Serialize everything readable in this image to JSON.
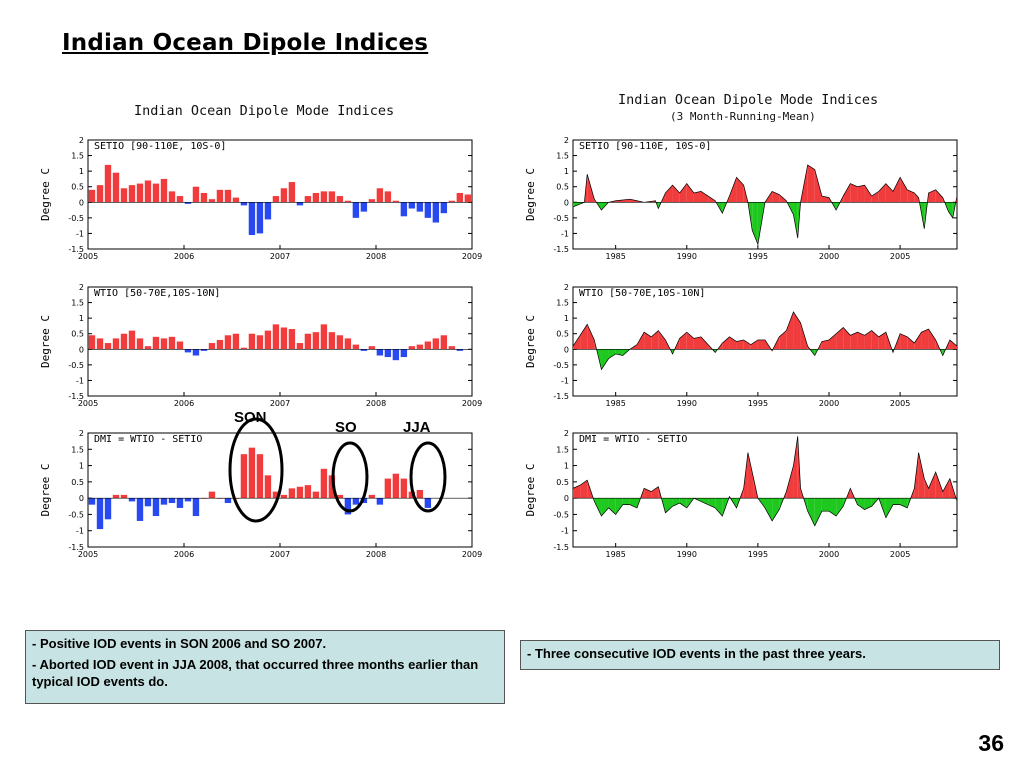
{
  "slide": {
    "title": "Indian Ocean Dipole Indices",
    "page_number": "36"
  },
  "colors": {
    "positive_bar": "#f03c3c",
    "negative_bar": "#2848f0",
    "positive_fill": "#f03c3c",
    "negative_fill": "#1ec81e",
    "axis": "#000000",
    "event_circle": "#000000",
    "note_background": "#c7e3e3"
  },
  "left_chart": {
    "heading": "Indian Ocean Dipole Mode Indices"
  },
  "right_chart": {
    "heading": "Indian Ocean Dipole Mode Indices",
    "subheading": "(3 Month-Running-Mean)"
  },
  "event_labels": {
    "son": "SON",
    "so": "SO",
    "jja": "JJA"
  },
  "notes": {
    "left": [
      {
        "dash": "- ",
        "text": "Positive IOD events in SON 2006 and SO 2007."
      },
      {
        "dash": "- ",
        "text": "Aborted IOD event in JJA 2008, that occurred three months earlier than typical IOD events do."
      }
    ],
    "right": [
      {
        "dash": "- ",
        "text": "Three consecutive IOD events in the past three years."
      }
    ]
  },
  "chart_data": [
    {
      "type": "bar",
      "panel_label": "SETIO [90-110E, 10S-0]",
      "ylabel": "Degree C",
      "xlim": [
        2005,
        2009
      ],
      "ylim": [
        -1.5,
        2
      ],
      "xticks": [
        2005,
        2006,
        2007,
        2008,
        2009
      ],
      "yticks": [
        2,
        1.5,
        1,
        0.5,
        0,
        -0.5,
        -1,
        -1.5
      ],
      "x_start": 2005.0,
      "x_step": 0.0833,
      "values": [
        0.4,
        0.55,
        1.2,
        0.95,
        0.45,
        0.55,
        0.6,
        0.7,
        0.6,
        0.75,
        0.35,
        0.2,
        -0.05,
        0.5,
        0.3,
        0.1,
        0.4,
        0.4,
        0.15,
        -0.1,
        -1.05,
        -1.0,
        -0.55,
        0.2,
        0.45,
        0.65,
        -0.1,
        0.2,
        0.3,
        0.35,
        0.35,
        0.2,
        0.05,
        -0.5,
        -0.3,
        0.1,
        0.45,
        0.35,
        0.05,
        -0.45,
        -0.2,
        -0.3,
        -0.5,
        -0.65,
        -0.35,
        0.05,
        0.3,
        0.25
      ]
    },
    {
      "type": "area",
      "panel_label": "SETIO [90-110E, 10S-0]",
      "ylabel": "Degree C",
      "xlim": [
        1982,
        2009
      ],
      "ylim": [
        -1.5,
        2
      ],
      "xticks": [
        1985,
        1990,
        1995,
        2000,
        2005
      ],
      "yticks": [
        2,
        1.5,
        1,
        0.5,
        0,
        -0.5,
        -1,
        -1.5
      ],
      "x": [
        1982,
        1982.8,
        1983,
        1983.5,
        1984,
        1984.5,
        1985,
        1986,
        1987,
        1987.8,
        1988,
        1988.5,
        1989,
        1989.5,
        1990,
        1990.5,
        1991,
        1991.5,
        1992,
        1992.5,
        1993,
        1993.5,
        1994,
        1994.3,
        1994.6,
        1995,
        1995.5,
        1996,
        1996.5,
        1997,
        1997.5,
        1997.8,
        1998,
        1998.5,
        1999,
        1999.5,
        2000,
        2000.5,
        2001,
        2001.5,
        2002,
        2002.5,
        2003,
        2003.5,
        2004,
        2004.5,
        2005,
        2005.5,
        2006,
        2006.3,
        2006.7,
        2007,
        2007.5,
        2008,
        2008.4,
        2008.7,
        2009
      ],
      "values": [
        -0.15,
        0.0,
        0.9,
        0.1,
        -0.25,
        0.0,
        0.05,
        0.1,
        0.0,
        0.05,
        -0.2,
        0.3,
        0.55,
        0.3,
        0.6,
        0.3,
        0.35,
        0.2,
        0.05,
        -0.35,
        0.2,
        0.8,
        0.55,
        0.0,
        -0.9,
        -1.35,
        0.0,
        0.35,
        0.25,
        0.05,
        -0.4,
        -1.15,
        0.0,
        1.2,
        1.05,
        0.2,
        0.15,
        -0.25,
        0.2,
        0.6,
        0.5,
        0.55,
        0.2,
        0.35,
        0.6,
        0.35,
        0.8,
        0.4,
        0.3,
        0.15,
        -0.85,
        0.3,
        0.4,
        0.15,
        -0.3,
        -0.5,
        0.2
      ]
    },
    {
      "type": "bar",
      "panel_label": "WTIO [50-70E,10S-10N]",
      "ylabel": "Degree C",
      "xlim": [
        2005,
        2009
      ],
      "ylim": [
        -1.5,
        2
      ],
      "xticks": [
        2005,
        2006,
        2007,
        2008,
        2009
      ],
      "yticks": [
        2,
        1.5,
        1,
        0.5,
        0,
        -0.5,
        -1,
        -1.5
      ],
      "x_start": 2005.0,
      "x_step": 0.0833,
      "values": [
        0.45,
        0.35,
        0.2,
        0.35,
        0.5,
        0.6,
        0.35,
        0.1,
        0.4,
        0.35,
        0.4,
        0.25,
        -0.1,
        -0.2,
        -0.05,
        0.2,
        0.3,
        0.45,
        0.5,
        0.05,
        0.5,
        0.45,
        0.6,
        0.8,
        0.7,
        0.65,
        0.2,
        0.5,
        0.55,
        0.8,
        0.55,
        0.45,
        0.35,
        0.15,
        -0.05,
        0.1,
        -0.2,
        -0.25,
        -0.35,
        -0.25,
        0.1,
        0.15,
        0.25,
        0.35,
        0.45,
        0.1,
        -0.05
      ]
    },
    {
      "type": "area",
      "panel_label": "WTIO [50-70E,10S-10N]",
      "ylabel": "Degree C",
      "xlim": [
        1982,
        2009
      ],
      "ylim": [
        -1.5,
        2
      ],
      "xticks": [
        1985,
        1990,
        1995,
        2000,
        2005
      ],
      "yticks": [
        2,
        1.5,
        1,
        0.5,
        0,
        -0.5,
        -1,
        -1.5
      ],
      "x": [
        1982,
        1982.5,
        1983,
        1983.5,
        1984,
        1984.5,
        1985,
        1985.5,
        1986,
        1986.5,
        1987,
        1987.5,
        1988,
        1988.5,
        1989,
        1989.5,
        1990,
        1990.5,
        1991,
        1991.5,
        1992,
        1992.5,
        1993,
        1993.5,
        1994,
        1994.5,
        1995,
        1995.5,
        1996,
        1996.5,
        1997,
        1997.5,
        1998,
        1998.5,
        1999,
        1999.5,
        2000,
        2000.5,
        2001,
        2001.5,
        2002,
        2002.5,
        2003,
        2003.5,
        2004,
        2004.5,
        2005,
        2005.5,
        2006,
        2006.5,
        2007,
        2007.5,
        2008,
        2008.5,
        2009
      ],
      "values": [
        0.1,
        0.45,
        0.8,
        0.3,
        -0.65,
        -0.3,
        -0.15,
        -0.2,
        0.0,
        0.15,
        0.55,
        0.4,
        0.6,
        0.3,
        -0.15,
        0.35,
        0.55,
        0.35,
        0.4,
        0.15,
        -0.1,
        0.2,
        0.4,
        0.25,
        0.3,
        0.15,
        0.3,
        0.3,
        -0.05,
        0.4,
        0.6,
        1.2,
        0.85,
        0.1,
        -0.2,
        0.25,
        0.3,
        0.5,
        0.7,
        0.45,
        0.55,
        0.45,
        0.6,
        0.4,
        0.55,
        -0.1,
        0.5,
        0.4,
        0.2,
        0.55,
        0.65,
        0.3,
        -0.2,
        0.3,
        0.1
      ]
    },
    {
      "type": "bar",
      "panel_label": "DMI = WTIO - SETIO",
      "ylabel": "Degree C",
      "xlim": [
        2005,
        2009
      ],
      "ylim": [
        -1.5,
        2
      ],
      "xticks": [
        2005,
        2006,
        2007,
        2008,
        2009
      ],
      "yticks": [
        2,
        1.5,
        1,
        0.5,
        0,
        -0.5,
        -1,
        -1.5
      ],
      "x_start": 2005.0,
      "x_step": 0.0833,
      "values": [
        -0.2,
        -0.95,
        -0.65,
        0.1,
        0.1,
        -0.1,
        -0.7,
        -0.25,
        -0.55,
        -0.2,
        -0.15,
        -0.3,
        -0.1,
        -0.55,
        0.0,
        0.2,
        0.0,
        -0.15,
        0.0,
        1.35,
        1.55,
        1.35,
        0.7,
        0.2,
        0.1,
        0.3,
        0.35,
        0.4,
        0.2,
        0.9,
        0.7,
        0.1,
        -0.5,
        -0.2,
        -0.15,
        0.1,
        -0.2,
        0.6,
        0.75,
        0.6,
        0.2,
        0.25,
        -0.3
      ]
    },
    {
      "type": "area",
      "panel_label": "DMI = WTIO - SETIO",
      "ylabel": "Degree C",
      "xlim": [
        1982,
        2009
      ],
      "ylim": [
        -1.5,
        2
      ],
      "xticks": [
        1985,
        1990,
        1995,
        2000,
        2005
      ],
      "yticks": [
        2,
        1.5,
        1,
        0.5,
        0,
        -0.5,
        -1,
        -1.5
      ],
      "x": [
        1982,
        1982.5,
        1983,
        1983.5,
        1984,
        1984.5,
        1985,
        1985.5,
        1986,
        1986.5,
        1987,
        1987.5,
        1988,
        1988.5,
        1989,
        1989.5,
        1990,
        1990.5,
        1991,
        1991.5,
        1992,
        1992.5,
        1993,
        1993.5,
        1994,
        1994.3,
        1994.7,
        1995,
        1995.5,
        1996,
        1996.5,
        1997,
        1997.5,
        1997.8,
        1998,
        1998.5,
        1999,
        1999.5,
        2000,
        2000.5,
        2001,
        2001.5,
        2002,
        2002.5,
        2003,
        2003.5,
        2004,
        2004.5,
        2005,
        2005.5,
        2006,
        2006.3,
        2006.7,
        2007,
        2007.5,
        2008,
        2008.5,
        2009
      ],
      "values": [
        0.3,
        0.4,
        0.55,
        -0.1,
        -0.55,
        -0.3,
        -0.5,
        -0.2,
        -0.2,
        -0.3,
        0.3,
        0.2,
        0.35,
        -0.45,
        -0.25,
        -0.15,
        -0.3,
        0.0,
        -0.1,
        -0.2,
        -0.3,
        -0.55,
        0.05,
        -0.3,
        0.3,
        1.4,
        0.6,
        0.0,
        -0.3,
        -0.7,
        -0.35,
        0.2,
        1.0,
        1.9,
        0.3,
        -0.4,
        -0.85,
        -0.4,
        -0.4,
        -0.55,
        -0.25,
        0.3,
        -0.2,
        -0.35,
        -0.25,
        0.0,
        -0.6,
        -0.2,
        -0.2,
        -0.3,
        0.3,
        1.4,
        0.6,
        0.3,
        0.8,
        0.2,
        0.6,
        -0.1
      ]
    }
  ]
}
